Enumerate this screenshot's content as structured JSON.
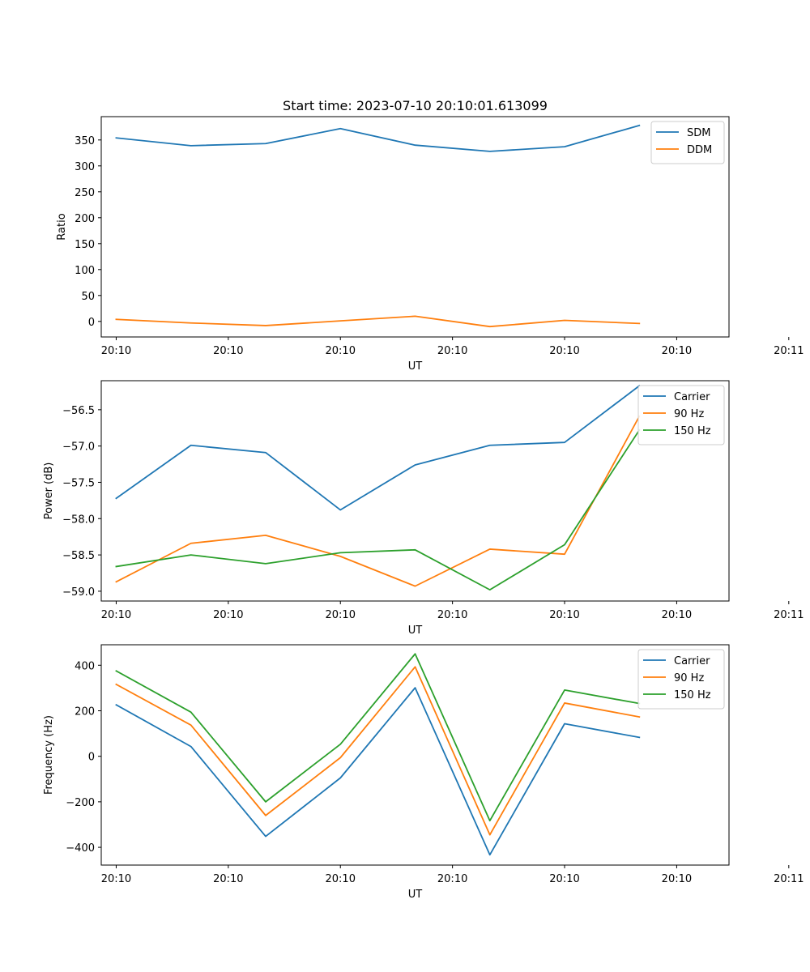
{
  "title": "Start time: 2023-07-10 20:10:01.613099",
  "chart_data": [
    {
      "type": "line",
      "title": "Start time: 2023-07-10 20:10:01.613099",
      "xlabel": "UT",
      "ylabel": "Ratio",
      "x": [
        1,
        2,
        3,
        4,
        5,
        6,
        7,
        8
      ],
      "xlim": [
        0.8,
        9.2
      ],
      "x_ticks": [
        1,
        2.5,
        4,
        5.5,
        7,
        8.5,
        10
      ],
      "x_tick_labels": [
        "20:10",
        "20:10",
        "20:10",
        "20:10",
        "20:10",
        "20:10",
        "20:11"
      ],
      "ylim": [
        -30,
        395
      ],
      "y_ticks": [
        0,
        50,
        100,
        150,
        200,
        250,
        300,
        350
      ],
      "y_tick_labels": [
        "0",
        "50",
        "100",
        "150",
        "200",
        "250",
        "300",
        "350"
      ],
      "legend_position": "top-right",
      "series": [
        {
          "name": "SDM",
          "color": "#1f77b4",
          "values": [
            354,
            339,
            343,
            372,
            340,
            328,
            337,
            378
          ]
        },
        {
          "name": "DDM",
          "color": "#ff7f0e",
          "values": [
            4,
            -3,
            -8,
            1,
            10,
            -10,
            2,
            -4
          ]
        }
      ]
    },
    {
      "type": "line",
      "xlabel": "UT",
      "ylabel": "Power (dB)",
      "x": [
        1,
        2,
        3,
        4,
        5,
        6,
        7,
        8
      ],
      "xlim": [
        0.8,
        9.2
      ],
      "x_ticks": [
        1,
        2.5,
        4,
        5.5,
        7,
        8.5,
        10
      ],
      "x_tick_labels": [
        "20:10",
        "20:10",
        "20:10",
        "20:10",
        "20:10",
        "20:10",
        "20:11"
      ],
      "ylim": [
        -59.135,
        -56.1
      ],
      "y_ticks": [
        -59.0,
        -58.5,
        -58.0,
        -57.5,
        -57.0,
        -56.5
      ],
      "y_tick_labels": [
        "−59.0",
        "−58.5",
        "−58.0",
        "−57.5",
        "−57.0",
        "−56.5"
      ],
      "legend_position": "top-right",
      "series": [
        {
          "name": "Carrier",
          "color": "#1f77b4",
          "values": [
            -57.72,
            -56.99,
            -57.09,
            -57.88,
            -57.26,
            -56.99,
            -56.95,
            -56.17
          ]
        },
        {
          "name": "90 Hz",
          "color": "#ff7f0e",
          "values": [
            -58.87,
            -58.34,
            -58.23,
            -58.52,
            -58.93,
            -58.42,
            -58.49,
            -56.59
          ]
        },
        {
          "name": "150 Hz",
          "color": "#2ca02c",
          "values": [
            -58.66,
            -58.5,
            -58.62,
            -58.47,
            -58.43,
            -58.98,
            -58.36,
            -56.78
          ]
        }
      ]
    },
    {
      "type": "line",
      "xlabel": "UT",
      "ylabel": "Frequency (Hz)",
      "x": [
        1,
        2,
        3,
        4,
        5,
        6,
        7,
        8
      ],
      "xlim": [
        0.8,
        9.2
      ],
      "x_ticks": [
        1,
        2.5,
        4,
        5.5,
        7,
        8.5,
        10
      ],
      "x_tick_labels": [
        "20:10",
        "20:10",
        "20:10",
        "20:10",
        "20:10",
        "20:10",
        "20:11"
      ],
      "ylim": [
        -478,
        490
      ],
      "y_ticks": [
        -400,
        -200,
        0,
        200,
        400
      ],
      "y_tick_labels": [
        "−400",
        "−200",
        "0",
        "200",
        "400"
      ],
      "legend_position": "top-right",
      "series": [
        {
          "name": "Carrier",
          "color": "#1f77b4",
          "values": [
            226,
            43,
            -352,
            -95,
            301,
            -433,
            143,
            83
          ]
        },
        {
          "name": "90 Hz",
          "color": "#ff7f0e",
          "values": [
            316,
            137,
            -260,
            -6,
            393,
            -345,
            234,
            173
          ]
        },
        {
          "name": "150 Hz",
          "color": "#2ca02c",
          "values": [
            375,
            194,
            -200,
            53,
            450,
            -283,
            291,
            232
          ]
        }
      ]
    }
  ]
}
